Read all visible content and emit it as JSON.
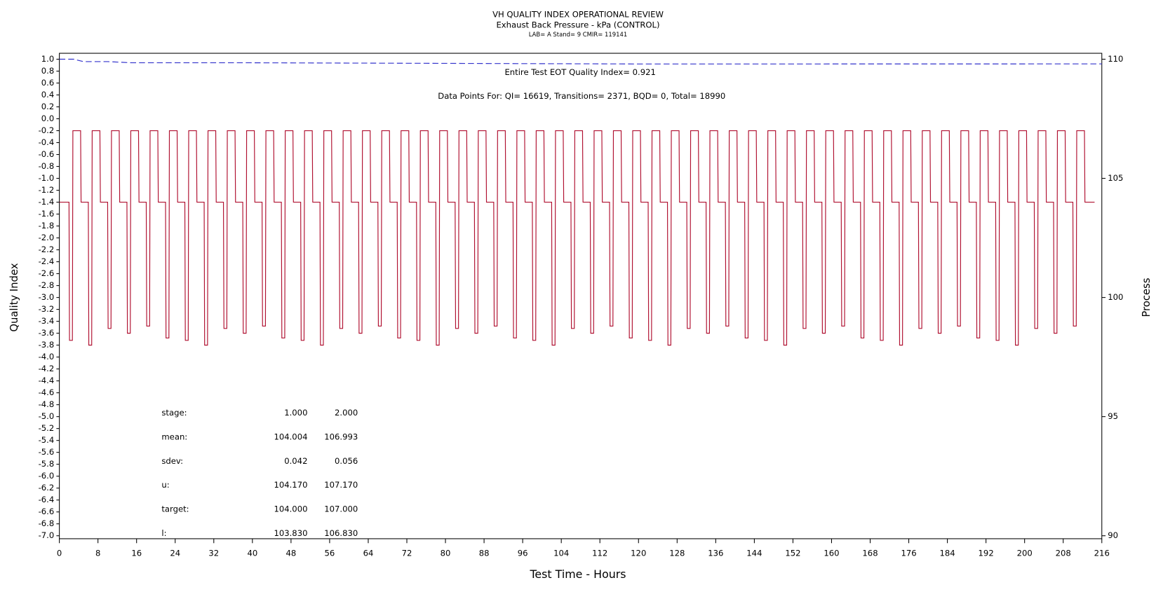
{
  "chart_data": {
    "type": "line",
    "title": "VH QUALITY INDEX OPERATIONAL REVIEW",
    "subtitle": "Exhaust Back Pressure - kPa (CONTROL)",
    "subtitle2": "LAB= A Stand= 9 CMIR= 119141",
    "xlabel": "Test Time - Hours",
    "ylabel": "Quality Index",
    "y2label": "Process",
    "annotations": [
      "Entire Test EOT Quality Index=  0.921",
      "Data Points For: QI= 16619, Transitions=  2371, BQD=     0, Total= 18990"
    ],
    "stats": [
      [
        "stage:",
        "1.000",
        "2.000"
      ],
      [
        "mean:",
        "104.004",
        "106.993"
      ],
      [
        "sdev:",
        "0.042",
        "0.056"
      ],
      [
        "u:",
        "104.170",
        "107.170"
      ],
      [
        "target:",
        "104.000",
        "107.000"
      ],
      [
        "l:",
        "103.830",
        "106.830"
      ]
    ],
    "xlim": [
      0,
      216
    ],
    "xticks": [
      0,
      8,
      16,
      24,
      32,
      40,
      48,
      56,
      64,
      72,
      80,
      88,
      96,
      104,
      112,
      120,
      128,
      136,
      144,
      152,
      160,
      168,
      176,
      184,
      192,
      200,
      208,
      216
    ],
    "ylim": [
      -7.0,
      1.0
    ],
    "yticks": [
      {
        "value": 1.0,
        "label": "1.0"
      },
      {
        "value": 0.8,
        "label": "0.8"
      },
      {
        "value": 0.6,
        "label": "0.6"
      },
      {
        "value": 0.4,
        "label": "0.4"
      },
      {
        "value": 0.2,
        "label": "0.2"
      },
      {
        "value": 0.0,
        "label": "0.0"
      },
      {
        "value": -0.2,
        "label": "-0.2"
      },
      {
        "value": -0.4,
        "label": "-0.4"
      },
      {
        "value": -0.6,
        "label": "-0.6"
      },
      {
        "value": -0.8,
        "label": "-0.8"
      },
      {
        "value": -1.0,
        "label": "-1.0"
      },
      {
        "value": -1.2,
        "label": "-1.2"
      },
      {
        "value": -1.4,
        "label": "-1.4"
      },
      {
        "value": -1.6,
        "label": "-1.6"
      },
      {
        "value": -1.8,
        "label": "-1.8"
      },
      {
        "value": -2.0,
        "label": "-2.0"
      },
      {
        "value": -2.2,
        "label": "-2.2"
      },
      {
        "value": -2.4,
        "label": "-2.4"
      },
      {
        "value": -2.6,
        "label": "-2.6"
      },
      {
        "value": -2.8,
        "label": "-2.8"
      },
      {
        "value": -3.0,
        "label": "-3.0"
      },
      {
        "value": -3.2,
        "label": "-3.2"
      },
      {
        "value": -3.4,
        "label": "-3.4"
      },
      {
        "value": -3.6,
        "label": "-3.6"
      },
      {
        "value": -3.8,
        "label": "-3.8"
      },
      {
        "value": -4.0,
        "label": "-4.0"
      },
      {
        "value": -4.2,
        "label": "-4.2"
      },
      {
        "value": -4.4,
        "label": "-4.4"
      },
      {
        "value": -4.6,
        "label": "-4.6"
      },
      {
        "value": -4.8,
        "label": "-4.8"
      },
      {
        "value": -5.0,
        "label": "-5.0"
      },
      {
        "value": -5.2,
        "label": "-5.2"
      },
      {
        "value": -5.4,
        "label": "-5.4"
      },
      {
        "value": -5.6,
        "label": "-5.6"
      },
      {
        "value": -5.8,
        "label": "-5.8"
      },
      {
        "value": -6.0,
        "label": "-6.0"
      },
      {
        "value": -6.2,
        "label": "-6.2"
      },
      {
        "value": -6.4,
        "label": "-6.4"
      },
      {
        "value": -6.6,
        "label": "-6.6"
      },
      {
        "value": -6.8,
        "label": "-6.8"
      },
      {
        "value": -7.0,
        "label": "-7.0"
      }
    ],
    "y2lim": [
      90,
      110
    ],
    "y2ticks": [
      90,
      95,
      100,
      105,
      110
    ],
    "series": [
      {
        "color": "#3333cc",
        "dashed": true,
        "axis": "y",
        "x": [
          0,
          3,
          5,
          10,
          15,
          40,
          80,
          120,
          216
        ],
        "values": [
          1.0,
          1.0,
          0.96,
          0.96,
          0.94,
          0.94,
          0.93,
          0.92,
          0.921
        ]
      },
      {
        "color": "#b01030",
        "axis": "y2",
        "x": [
          0,
          2,
          2.1,
          2.7,
          2.8,
          4.4,
          4.5,
          6,
          6.1,
          6.7,
          6.8,
          8.4,
          8.5,
          10,
          10.1,
          10.7,
          10.8,
          12.4,
          12.5,
          14,
          14.1,
          14.7,
          14.8,
          16.4,
          16.5,
          18,
          18.1,
          18.7,
          18.8,
          20.4,
          20.5,
          22,
          22.1,
          22.7,
          22.8,
          24.4,
          24.5,
          26,
          26.1,
          26.7,
          26.8,
          28.4,
          28.5,
          30,
          30.1,
          30.7,
          30.8,
          32.4,
          32.5,
          34,
          34.1,
          34.7,
          34.8,
          36.4,
          36.5,
          38,
          38.1,
          38.7,
          38.8,
          40.4,
          40.5,
          42,
          42.1,
          42.7,
          42.8,
          44.4,
          44.5,
          46,
          46.1,
          46.7,
          46.8,
          48.4,
          48.5,
          50,
          50.1,
          50.7,
          50.8,
          52.4,
          52.5,
          54,
          54.1,
          54.7,
          54.8,
          56.4,
          56.5,
          58,
          58.1,
          58.7,
          58.8,
          60.4,
          60.5,
          62,
          62.1,
          62.7,
          62.8,
          64.4,
          64.5,
          66,
          66.1,
          66.7,
          66.8,
          68.4,
          68.5,
          70,
          70.1,
          70.7,
          70.8,
          72.4,
          72.5,
          74,
          74.1,
          74.7,
          74.8,
          76.4,
          76.5,
          78,
          78.1,
          78.7,
          78.8,
          80.4,
          80.5,
          82,
          82.1,
          82.7,
          82.8,
          84.4,
          84.5,
          86,
          86.1,
          86.7,
          86.8,
          88.4,
          88.5,
          90,
          90.1,
          90.7,
          90.8,
          92.4,
          92.5,
          94,
          94.1,
          94.7,
          94.8,
          96.4,
          96.5,
          98,
          98.1,
          98.7,
          98.8,
          100.4,
          100.5,
          102,
          102.1,
          102.7,
          102.8,
          104.4,
          104.5,
          106,
          106.1,
          106.7,
          106.8,
          108.4,
          108.5,
          110,
          110.1,
          110.7,
          110.8,
          112.4,
          112.5,
          114,
          114.1,
          114.7,
          114.8,
          116.4,
          116.5,
          118,
          118.1,
          118.7,
          118.8,
          120.4,
          120.5,
          122,
          122.1,
          122.7,
          122.8,
          124.4,
          124.5,
          126,
          126.1,
          126.7,
          126.8,
          128.4,
          128.5,
          130,
          130.1,
          130.7,
          130.8,
          132.4,
          132.5,
          134,
          134.1,
          134.7,
          134.8,
          136.4,
          136.5,
          138,
          138.1,
          138.7,
          138.8,
          140.4,
          140.5,
          142,
          142.1,
          142.7,
          142.8,
          144.4,
          144.5,
          146,
          146.1,
          146.7,
          146.8,
          148.4,
          148.5,
          150,
          150.1,
          150.7,
          150.8,
          152.4,
          152.5,
          154,
          154.1,
          154.7,
          154.8,
          156.4,
          156.5,
          158,
          158.1,
          158.7,
          158.8,
          160.4,
          160.5,
          162,
          162.1,
          162.7,
          162.8,
          164.4,
          164.5,
          166,
          166.1,
          166.7,
          166.8,
          168.4,
          168.5,
          170,
          170.1,
          170.7,
          170.8,
          172.4,
          172.5,
          174,
          174.1,
          174.7,
          174.8,
          176.4,
          176.5,
          178,
          178.1,
          178.7,
          178.8,
          180.4,
          180.5,
          182,
          182.1,
          182.7,
          182.8,
          184.4,
          184.5,
          186,
          186.1,
          186.7,
          186.8,
          188.4,
          188.5,
          190,
          190.1,
          190.7,
          190.8,
          192.4,
          192.5,
          194,
          194.1,
          194.7,
          194.8,
          196.4,
          196.5,
          198,
          198.1,
          198.7,
          198.8,
          200.4,
          200.5,
          202,
          202.1,
          202.7,
          202.8,
          204.4,
          204.5,
          206,
          206.1,
          206.7,
          206.8,
          208.4,
          208.5,
          210,
          210.1,
          210.7,
          210.8,
          212.4,
          212.5,
          214.5
        ],
        "values": [
          104,
          104,
          98.2,
          98.2,
          107,
          107,
          104,
          104,
          98.0,
          98.0,
          107,
          107,
          104,
          104,
          98.7,
          98.7,
          107,
          107,
          104,
          104,
          98.5,
          98.5,
          107,
          107,
          104,
          104,
          98.8,
          98.8,
          107,
          107,
          104,
          104,
          98.3,
          98.3,
          107,
          107,
          104,
          104,
          98.2,
          98.2,
          107,
          107,
          104,
          104,
          98.0,
          98.0,
          107,
          107,
          104,
          104,
          98.7,
          98.7,
          107,
          107,
          104,
          104,
          98.5,
          98.5,
          107,
          107,
          104,
          104,
          98.8,
          98.8,
          107,
          107,
          104,
          104,
          98.3,
          98.3,
          107,
          107,
          104,
          104,
          98.2,
          98.2,
          107,
          107,
          104,
          104,
          98.0,
          98.0,
          107,
          107,
          104,
          104,
          98.7,
          98.7,
          107,
          107,
          104,
          104,
          98.5,
          98.5,
          107,
          107,
          104,
          104,
          98.8,
          98.8,
          107,
          107,
          104,
          104,
          98.3,
          98.3,
          107,
          107,
          104,
          104,
          98.2,
          98.2,
          107,
          107,
          104,
          104,
          98.0,
          98.0,
          107,
          107,
          104,
          104,
          98.7,
          98.7,
          107,
          107,
          104,
          104,
          98.5,
          98.5,
          107,
          107,
          104,
          104,
          98.8,
          98.8,
          107,
          107,
          104,
          104,
          98.3,
          98.3,
          107,
          107,
          104,
          104,
          98.2,
          98.2,
          107,
          107,
          104,
          104,
          98.0,
          98.0,
          107,
          107,
          104,
          104,
          98.7,
          98.7,
          107,
          107,
          104,
          104,
          98.5,
          98.5,
          107,
          107,
          104,
          104,
          98.8,
          98.8,
          107,
          107,
          104,
          104,
          98.3,
          98.3,
          107,
          107,
          104,
          104,
          98.2,
          98.2,
          107,
          107,
          104,
          104,
          98.0,
          98.0,
          107,
          107,
          104,
          104,
          98.7,
          98.7,
          107,
          107,
          104,
          104,
          98.5,
          98.5,
          107,
          107,
          104,
          104,
          98.8,
          98.8,
          107,
          107,
          104,
          104,
          98.3,
          98.3,
          107,
          107,
          104,
          104,
          98.2,
          98.2,
          107,
          107,
          104,
          104,
          98.0,
          98.0,
          107,
          107,
          104,
          104,
          98.7,
          98.7,
          107,
          107,
          104,
          104,
          98.5,
          98.5,
          107,
          107,
          104,
          104,
          98.8,
          98.8,
          107,
          107,
          104,
          104,
          98.3,
          98.3,
          107,
          107,
          104,
          104,
          98.2,
          98.2,
          107,
          107,
          104,
          104,
          98.0,
          98.0,
          107,
          107,
          104,
          104,
          98.7,
          98.7,
          107,
          107,
          104,
          104,
          98.5,
          98.5,
          107,
          107,
          104,
          104,
          98.8,
          98.8,
          107,
          107,
          104,
          104,
          98.3,
          98.3,
          107,
          107,
          104,
          104,
          98.2,
          98.2,
          107,
          107,
          104,
          104,
          98.0,
          98.0,
          107,
          107,
          104,
          104,
          98.7,
          98.7,
          107,
          107,
          104,
          104,
          98.5,
          98.5,
          107,
          107,
          104,
          104,
          98.8,
          98.8,
          107,
          107,
          104,
          104
        ]
      }
    ]
  }
}
